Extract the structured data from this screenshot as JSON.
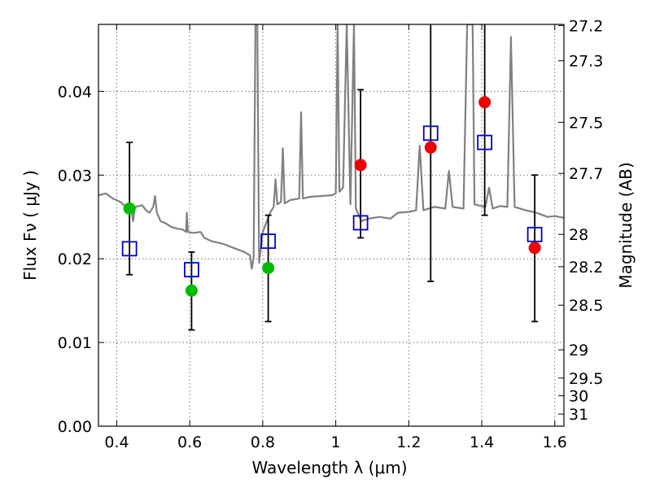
{
  "chart_data": {
    "type": "scatter",
    "xlabel": "Wavelength  λ (μm)",
    "ylabel": "Flux  Fν  ( μJy )",
    "y2label": "Magnitude (AB)",
    "xlim": [
      0.35,
      1.625
    ],
    "ylim": [
      0.0,
      0.048
    ],
    "grid": true,
    "x_ticks": [
      {
        "value": 0.4,
        "label": "0.4"
      },
      {
        "value": 0.6,
        "label": "0.6"
      },
      {
        "value": 0.8,
        "label": "0.8"
      },
      {
        "value": 1.0,
        "label": "1"
      },
      {
        "value": 1.2,
        "label": "1.2"
      },
      {
        "value": 1.4,
        "label": "1.4"
      },
      {
        "value": 1.6,
        "label": "1.6"
      }
    ],
    "y_ticks": [
      {
        "value": 0.0,
        "label": "0.00"
      },
      {
        "value": 0.01,
        "label": "0.01"
      },
      {
        "value": 0.02,
        "label": "0.02"
      },
      {
        "value": 0.03,
        "label": "0.03"
      },
      {
        "value": 0.04,
        "label": "0.04"
      }
    ],
    "y2_ticks": [
      {
        "value": 27.2,
        "label": "27.2"
      },
      {
        "value": 27.3,
        "label": "27.3"
      },
      {
        "value": 27.5,
        "label": "27.5"
      },
      {
        "value": 27.7,
        "label": "27.7"
      },
      {
        "value": 28.0,
        "label": "28"
      },
      {
        "value": 28.2,
        "label": "28.2"
      },
      {
        "value": 28.5,
        "label": "28.5"
      },
      {
        "value": 29.0,
        "label": "29"
      },
      {
        "value": 29.5,
        "label": "29.5"
      },
      {
        "value": 30.0,
        "label": "30"
      },
      {
        "value": 31.0,
        "label": "31"
      }
    ],
    "colors": {
      "template": "#808080",
      "model_box": "#0000cc",
      "green_point": "#00bb00",
      "red_point": "#ee0000",
      "errorbar": "#000000",
      "grid": "#555555"
    },
    "series": [
      {
        "style": "errorbar",
        "points": [
          {
            "x": 0.435,
            "low": 0.0181,
            "high": 0.0339
          },
          {
            "x": 0.605,
            "low": 0.0115,
            "high": 0.0208
          },
          {
            "x": 0.815,
            "low": 0.0125,
            "high": 0.0252
          },
          {
            "x": 1.068,
            "low": 0.0225,
            "high": 0.0402
          },
          {
            "x": 1.26,
            "low": 0.0173,
            "high": 0.048
          },
          {
            "x": 1.408,
            "low": 0.0252,
            "high": 0.048
          },
          {
            "x": 1.545,
            "low": 0.0125,
            "high": 0.03
          }
        ]
      },
      {
        "style": "open-square",
        "points": [
          {
            "x": 0.435,
            "y": 0.0212
          },
          {
            "x": 0.605,
            "y": 0.0187
          },
          {
            "x": 0.815,
            "y": 0.0221
          },
          {
            "x": 1.068,
            "y": 0.0243
          },
          {
            "x": 1.26,
            "y": 0.035
          },
          {
            "x": 1.408,
            "y": 0.0339
          },
          {
            "x": 1.545,
            "y": 0.0229
          }
        ]
      },
      {
        "style": "green-dot",
        "points": [
          {
            "x": 0.435,
            "y": 0.026
          },
          {
            "x": 0.605,
            "y": 0.0162
          },
          {
            "x": 0.815,
            "y": 0.0189
          }
        ]
      },
      {
        "style": "red-dot",
        "points": [
          {
            "x": 1.068,
            "y": 0.0312
          },
          {
            "x": 1.26,
            "y": 0.0333
          },
          {
            "x": 1.408,
            "y": 0.0387
          },
          {
            "x": 1.545,
            "y": 0.0213
          }
        ]
      },
      {
        "style": "template-line",
        "points": [
          [
            0.35,
            0.0276
          ],
          [
            0.37,
            0.0278
          ],
          [
            0.39,
            0.0272
          ],
          [
            0.41,
            0.0268
          ],
          [
            0.425,
            0.0262
          ],
          [
            0.44,
            0.0258
          ],
          [
            0.445,
            0.0245
          ],
          [
            0.45,
            0.0262
          ],
          [
            0.47,
            0.0264
          ],
          [
            0.48,
            0.0258
          ],
          [
            0.49,
            0.0255
          ],
          [
            0.5,
            0.0262
          ],
          [
            0.505,
            0.0275
          ],
          [
            0.51,
            0.0255
          ],
          [
            0.52,
            0.0245
          ],
          [
            0.535,
            0.0242
          ],
          [
            0.55,
            0.0238
          ],
          [
            0.565,
            0.0236
          ],
          [
            0.58,
            0.0235
          ],
          [
            0.59,
            0.0232
          ],
          [
            0.592,
            0.0255
          ],
          [
            0.595,
            0.0232
          ],
          [
            0.61,
            0.0231
          ],
          [
            0.63,
            0.0232
          ],
          [
            0.64,
            0.0225
          ],
          [
            0.65,
            0.0223
          ],
          [
            0.66,
            0.0221
          ],
          [
            0.69,
            0.0218
          ],
          [
            0.72,
            0.0213
          ],
          [
            0.75,
            0.0208
          ],
          [
            0.765,
            0.0204
          ],
          [
            0.77,
            0.0188
          ],
          [
            0.775,
            0.0201
          ],
          [
            0.78,
            0.048
          ],
          [
            0.785,
            0.048
          ],
          [
            0.79,
            0.0195
          ],
          [
            0.8,
            0.0232
          ],
          [
            0.82,
            0.0255
          ],
          [
            0.83,
            0.0262
          ],
          [
            0.835,
            0.0295
          ],
          [
            0.84,
            0.0265
          ],
          [
            0.85,
            0.0268
          ],
          [
            0.855,
            0.0332
          ],
          [
            0.86,
            0.0266
          ],
          [
            0.875,
            0.027
          ],
          [
            0.9,
            0.0272
          ],
          [
            0.905,
            0.0375
          ],
          [
            0.91,
            0.0272
          ],
          [
            0.93,
            0.0274
          ],
          [
            0.96,
            0.0275
          ],
          [
            0.99,
            0.0276
          ],
          [
            1.0,
            0.0278
          ],
          [
            1.005,
            0.048
          ],
          [
            1.01,
            0.028
          ],
          [
            1.02,
            0.0285
          ],
          [
            1.03,
            0.048
          ],
          [
            1.04,
            0.0265
          ],
          [
            1.05,
            0.048
          ],
          [
            1.055,
            0.026
          ],
          [
            1.07,
            0.0245
          ],
          [
            1.09,
            0.0248
          ],
          [
            1.12,
            0.025
          ],
          [
            1.15,
            0.0248
          ],
          [
            1.17,
            0.0255
          ],
          [
            1.2,
            0.0256
          ],
          [
            1.22,
            0.0258
          ],
          [
            1.23,
            0.0335
          ],
          [
            1.24,
            0.0258
          ],
          [
            1.27,
            0.0262
          ],
          [
            1.3,
            0.026
          ],
          [
            1.31,
            0.0305
          ],
          [
            1.32,
            0.0262
          ],
          [
            1.35,
            0.026
          ],
          [
            1.36,
            0.048
          ],
          [
            1.375,
            0.048
          ],
          [
            1.38,
            0.0265
          ],
          [
            1.41,
            0.0262
          ],
          [
            1.42,
            0.0285
          ],
          [
            1.43,
            0.026
          ],
          [
            1.45,
            0.0263
          ],
          [
            1.47,
            0.0262
          ],
          [
            1.48,
            0.0465
          ],
          [
            1.49,
            0.0262
          ],
          [
            1.52,
            0.0258
          ],
          [
            1.55,
            0.0255
          ],
          [
            1.58,
            0.025
          ],
          [
            1.6,
            0.0251
          ],
          [
            1.625,
            0.0249
          ]
        ]
      }
    ]
  }
}
